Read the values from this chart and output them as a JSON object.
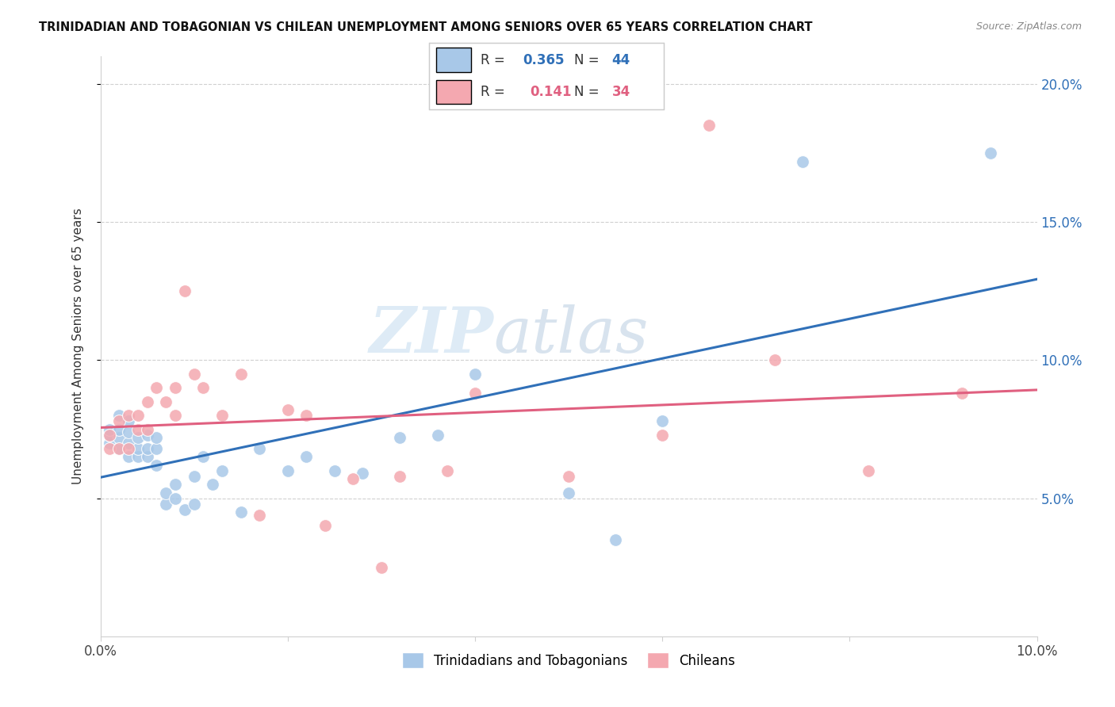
{
  "title": "TRINIDADIAN AND TOBAGONIAN VS CHILEAN UNEMPLOYMENT AMONG SENIORS OVER 65 YEARS CORRELATION CHART",
  "source": "Source: ZipAtlas.com",
  "ylabel": "Unemployment Among Seniors over 65 years",
  "r_blue": 0.365,
  "n_blue": 44,
  "r_pink": 0.141,
  "n_pink": 34,
  "blue_color": "#a8c8e8",
  "pink_color": "#f4a8b0",
  "blue_line_color": "#3070b8",
  "pink_line_color": "#e06080",
  "blue_label_color": "#3070b8",
  "pink_label_color": "#e06080",
  "legend_blue": "Trinidadians and Tobagonians",
  "legend_pink": "Chileans",
  "xlim": [
    0.0,
    0.1
  ],
  "ylim": [
    0.0,
    0.21
  ],
  "watermark_zip": "ZIP",
  "watermark_atlas": "atlas",
  "background_color": "#ffffff",
  "grid_color": "#d0d0d0",
  "blue_x": [
    0.001,
    0.001,
    0.001,
    0.002,
    0.002,
    0.002,
    0.002,
    0.003,
    0.003,
    0.003,
    0.003,
    0.004,
    0.004,
    0.004,
    0.005,
    0.005,
    0.005,
    0.006,
    0.006,
    0.006,
    0.007,
    0.007,
    0.008,
    0.008,
    0.009,
    0.01,
    0.01,
    0.011,
    0.012,
    0.013,
    0.015,
    0.017,
    0.02,
    0.022,
    0.025,
    0.028,
    0.032,
    0.036,
    0.04,
    0.05,
    0.055,
    0.06,
    0.075,
    0.095
  ],
  "blue_y": [
    0.07,
    0.073,
    0.075,
    0.068,
    0.072,
    0.075,
    0.08,
    0.065,
    0.07,
    0.074,
    0.078,
    0.065,
    0.068,
    0.072,
    0.065,
    0.068,
    0.073,
    0.062,
    0.068,
    0.072,
    0.048,
    0.052,
    0.05,
    0.055,
    0.046,
    0.048,
    0.058,
    0.065,
    0.055,
    0.06,
    0.045,
    0.068,
    0.06,
    0.065,
    0.06,
    0.059,
    0.072,
    0.073,
    0.095,
    0.052,
    0.035,
    0.078,
    0.172,
    0.175
  ],
  "pink_x": [
    0.001,
    0.001,
    0.002,
    0.002,
    0.003,
    0.003,
    0.004,
    0.004,
    0.005,
    0.005,
    0.006,
    0.007,
    0.008,
    0.008,
    0.009,
    0.01,
    0.011,
    0.013,
    0.015,
    0.017,
    0.02,
    0.022,
    0.024,
    0.027,
    0.03,
    0.032,
    0.037,
    0.04,
    0.05,
    0.06,
    0.065,
    0.072,
    0.082,
    0.092
  ],
  "pink_y": [
    0.068,
    0.073,
    0.068,
    0.078,
    0.068,
    0.08,
    0.075,
    0.08,
    0.075,
    0.085,
    0.09,
    0.085,
    0.08,
    0.09,
    0.125,
    0.095,
    0.09,
    0.08,
    0.095,
    0.044,
    0.082,
    0.08,
    0.04,
    0.057,
    0.025,
    0.058,
    0.06,
    0.088,
    0.058,
    0.073,
    0.185,
    0.1,
    0.06,
    0.088
  ]
}
